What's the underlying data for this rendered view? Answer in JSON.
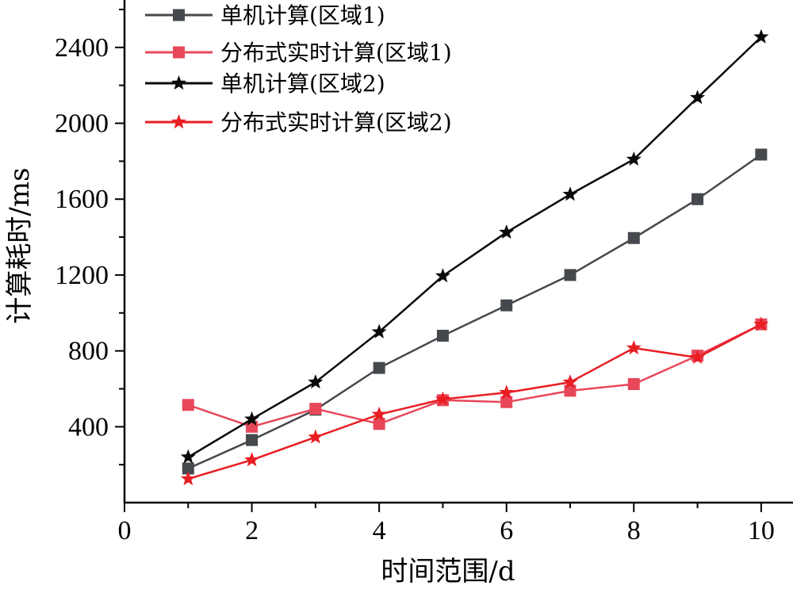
{
  "chart_data": {
    "type": "line",
    "xlabel": "时间范围/d",
    "ylabel": "计算耗时/ms",
    "xlim": [
      0,
      10.5
    ],
    "ylim": [
      0,
      2650
    ],
    "xticks": [
      0,
      2,
      4,
      6,
      8,
      10
    ],
    "yticks": [
      400,
      800,
      1200,
      1600,
      2000,
      2400
    ],
    "grid": false,
    "legend_position": "top-left",
    "x": [
      1,
      2,
      3,
      4,
      5,
      6,
      7,
      8,
      9,
      10
    ],
    "series": [
      {
        "name": "单机计算(区域1)",
        "color": "#45484c",
        "marker": "square",
        "values": [
          180,
          330,
          490,
          710,
          880,
          1040,
          1200,
          1395,
          1600,
          1835
        ]
      },
      {
        "name": "分布式实时计算(区域1)",
        "color": "#e8475a",
        "marker": "square",
        "values": [
          515,
          400,
          495,
          415,
          540,
          530,
          590,
          625,
          775,
          940
        ]
      },
      {
        "name": "单机计算(区域2)",
        "color": "#0a0a0a",
        "marker": "star",
        "values": [
          240,
          440,
          635,
          900,
          1195,
          1425,
          1625,
          1810,
          2135,
          2455
        ]
      },
      {
        "name": "分布式实时计算(区域2)",
        "color": "#e81e23",
        "marker": "star",
        "values": [
          125,
          225,
          345,
          465,
          545,
          580,
          635,
          815,
          765,
          940
        ]
      }
    ]
  }
}
